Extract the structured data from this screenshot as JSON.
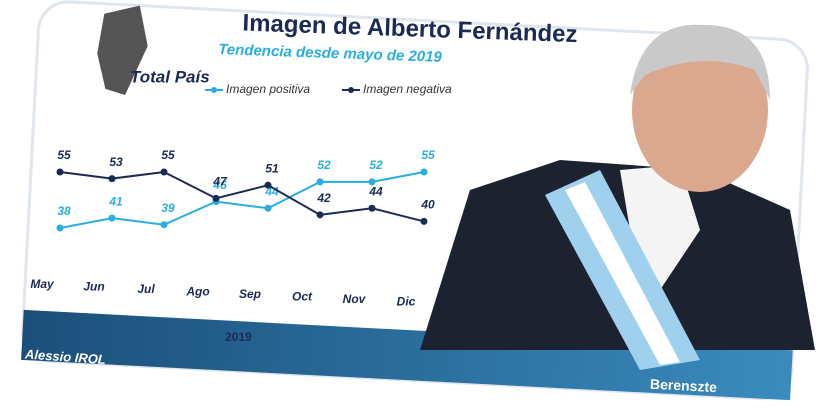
{
  "chart_data": {
    "type": "line",
    "title": "Imagen de Alberto Fernández",
    "subtitle": "Tendencia desde mayo de 2019",
    "scope_label": "Total País",
    "x_label": "2019",
    "categories": [
      "May",
      "Jun",
      "Jul",
      "Ago",
      "Sep",
      "Oct",
      "Nov",
      "Dic"
    ],
    "series": [
      {
        "name": "Imagen positiva",
        "color": "#2aaee0",
        "values": [
          38,
          41,
          39,
          46,
          44,
          52,
          52,
          55
        ]
      },
      {
        "name": "Imagen negativa",
        "color": "#1b2a55",
        "values": [
          55,
          53,
          55,
          47,
          51,
          42,
          44,
          40
        ]
      }
    ],
    "logos": [
      "Alessio IROL",
      "Berenszte"
    ]
  }
}
